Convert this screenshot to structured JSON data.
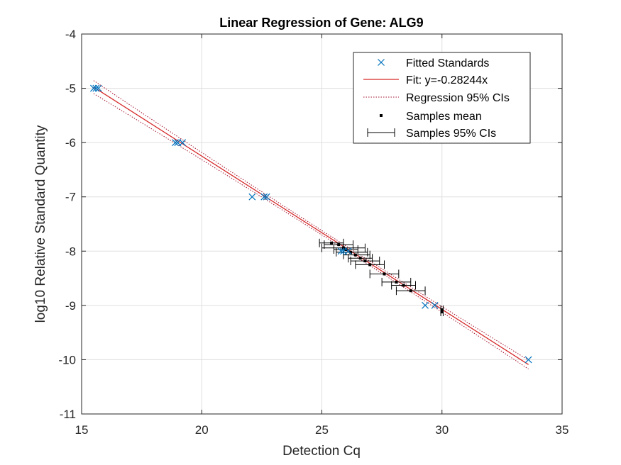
{
  "chart_data": {
    "type": "scatter",
    "title": "Linear Regression of Gene: ALG9",
    "xlabel": "Detection Cq",
    "ylabel": "log10 Relative Standard Quantity",
    "xlim": [
      15,
      35
    ],
    "ylim": [
      -11,
      -4
    ],
    "xticks": [
      15,
      20,
      25,
      30,
      35
    ],
    "yticks": [
      -11,
      -10,
      -9,
      -8,
      -7,
      -6,
      -5,
      -4
    ],
    "grid": true,
    "legend_position": "top-right",
    "colors": {
      "standards": "#0072BD",
      "fit": "#D62728",
      "ci": "#A2142F",
      "samples": "#000000",
      "grid": "#DFDFDF",
      "axis": "#262626"
    },
    "legend": [
      {
        "key": "standards",
        "label": "Fitted Standards"
      },
      {
        "key": "fit",
        "label": "Fit: y=-0.28244x"
      },
      {
        "key": "ci",
        "label": "Regression 95% CIs"
      },
      {
        "key": "mean",
        "label": "Samples mean"
      },
      {
        "key": "sample_ci",
        "label": "Samples 95% CIs"
      }
    ],
    "fit": {
      "slope": -0.28244,
      "intercept": -0.6,
      "x_range": [
        15.5,
        33.6
      ]
    },
    "ci_band": {
      "half_width_mid": 0.04,
      "half_width_end": 0.12,
      "x_center": 26
    },
    "standards": [
      {
        "x": 15.5,
        "y": -5
      },
      {
        "x": 15.6,
        "y": -5
      },
      {
        "x": 15.7,
        "y": -5
      },
      {
        "x": 18.9,
        "y": -6
      },
      {
        "x": 19.0,
        "y": -6
      },
      {
        "x": 19.2,
        "y": -6
      },
      {
        "x": 22.1,
        "y": -7
      },
      {
        "x": 22.6,
        "y": -7
      },
      {
        "x": 22.7,
        "y": -7
      },
      {
        "x": 25.8,
        "y": -8
      },
      {
        "x": 25.9,
        "y": -8
      },
      {
        "x": 26.1,
        "y": -8
      },
      {
        "x": 29.3,
        "y": -9
      },
      {
        "x": 29.7,
        "y": -9
      },
      {
        "x": 33.6,
        "y": -10
      }
    ],
    "samples": [
      {
        "x": 25.4,
        "y": -7.85,
        "lo": 24.9,
        "hi": 25.9
      },
      {
        "x": 25.7,
        "y": -7.88,
        "lo": 25.1,
        "hi": 26.3
      },
      {
        "x": 25.9,
        "y": -7.94,
        "lo": 25.0,
        "hi": 26.8
      },
      {
        "x": 26.0,
        "y": -7.97,
        "lo": 25.5,
        "hi": 26.5
      },
      {
        "x": 26.2,
        "y": -8.02,
        "lo": 25.6,
        "hi": 26.9
      },
      {
        "x": 26.4,
        "y": -8.07,
        "lo": 25.9,
        "hi": 27.0
      },
      {
        "x": 26.6,
        "y": -8.13,
        "lo": 26.1,
        "hi": 27.1
      },
      {
        "x": 26.8,
        "y": -8.18,
        "lo": 26.2,
        "hi": 27.4
      },
      {
        "x": 27.0,
        "y": -8.25,
        "lo": 26.4,
        "hi": 27.6
      },
      {
        "x": 27.6,
        "y": -8.42,
        "lo": 27.0,
        "hi": 28.2
      },
      {
        "x": 28.1,
        "y": -8.57,
        "lo": 27.5,
        "hi": 28.7
      },
      {
        "x": 28.4,
        "y": -8.63,
        "lo": 27.9,
        "hi": 28.9
      },
      {
        "x": 28.7,
        "y": -8.73,
        "lo": 28.1,
        "hi": 29.3
      },
      {
        "x": 30.0,
        "y": -9.08,
        "lo": 29.95,
        "hi": 30.05
      },
      {
        "x": 30.0,
        "y": -9.12,
        "lo": 29.95,
        "hi": 30.05
      }
    ]
  }
}
